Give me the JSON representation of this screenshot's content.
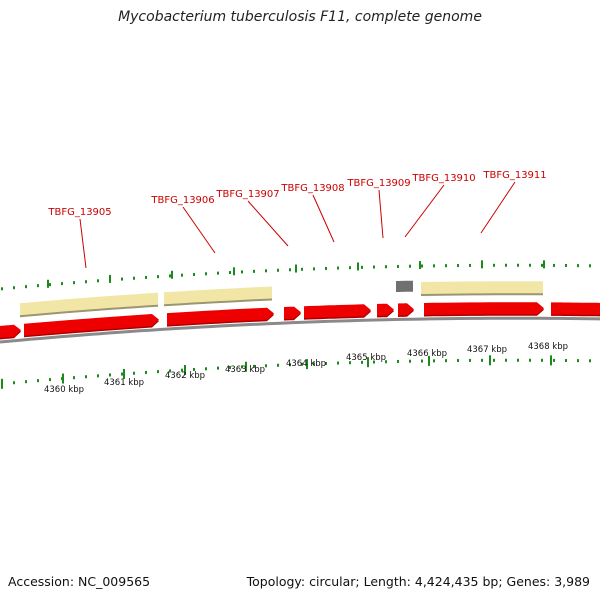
{
  "title": "Mycobacterium tuberculosis F11, complete genome",
  "footer": {
    "accession": "Accession: NC_009565",
    "summary": "Topology: circular; Length: 4,424,435 bp; Genes: 3,989"
  },
  "colors": {
    "cds": "#ee0000",
    "cds_shadow": "#aa0000",
    "orthologous_region": "#f2e6a6",
    "orthologous_shadow": "#9c9571",
    "other_feature": "#707070",
    "backbone": "#8a8a8a",
    "tick": "#1a8a1a",
    "gene_label": "#cc0000"
  },
  "gene_labels": [
    {
      "name": "TBFG_13905"
    },
    {
      "name": "TBFG_13906"
    },
    {
      "name": "TBFG_13907"
    },
    {
      "name": "TBFG_13908"
    },
    {
      "name": "TBFG_13909"
    },
    {
      "name": "TBFG_13910"
    },
    {
      "name": "TBFG_13911"
    }
  ],
  "kbp_labels": [
    "4360 kbp",
    "4361 kbp",
    "4362 kbp",
    "4363 kbp",
    "4364 kbp",
    "4365 kbp",
    "4366 kbp",
    "4367 kbp",
    "4368 kbp"
  ]
}
